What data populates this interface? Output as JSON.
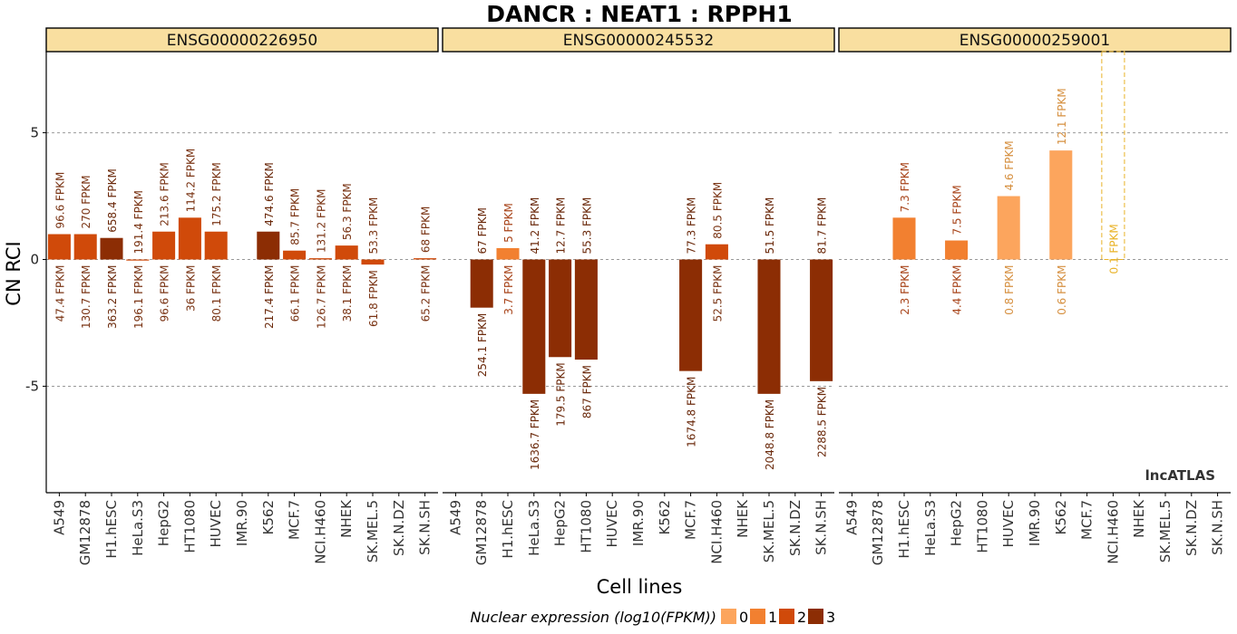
{
  "chart_data": {
    "type": "bar",
    "title": "DANCR : NEAT1 : RPPH1",
    "xlabel": "Cell lines",
    "ylabel": "CN RCI",
    "watermark": "lncATLAS",
    "ylim": [
      -9.2,
      8.2
    ],
    "yticks": [
      -5,
      0,
      5
    ],
    "ytick_labels": [
      "-5",
      "0",
      "5"
    ],
    "grid": "horizontal-dashed",
    "categories": [
      "A549",
      "GM12878",
      "H1.hESC",
      "HeLa.S3",
      "HepG2",
      "HT1080",
      "HUVEC",
      "IMR.90",
      "K562",
      "MCF.7",
      "NCI.H460",
      "NHEK",
      "SK.MEL.5",
      "SK.N.DZ",
      "SK.N.SH"
    ],
    "legend": {
      "title": "Nuclear expression (log10(FPKM))",
      "position": "bottom",
      "levels": [
        {
          "label": "0",
          "color": "#fca55d"
        },
        {
          "label": "1",
          "color": "#f28030"
        },
        {
          "label": "2",
          "color": "#d04a0a"
        },
        {
          "label": "3",
          "color": "#8c2d04"
        }
      ]
    },
    "panels": [
      {
        "name": "ENSG00000226950",
        "bars": [
          {
            "category": "A549",
            "value": 1.0,
            "level": 2,
            "top_label": "96.6 FPKM",
            "bottom_label": "47.4 FPKM"
          },
          {
            "category": "GM12878",
            "value": 1.0,
            "level": 2,
            "top_label": "270 FPKM",
            "bottom_label": "130.7 FPKM"
          },
          {
            "category": "H1.hESC",
            "value": 0.85,
            "level": 3,
            "top_label": "658.4 FPKM",
            "bottom_label": "363.2 FPKM"
          },
          {
            "category": "HeLa.S3",
            "value": 0.0,
            "level": 2,
            "top_label": "191.4 FPKM",
            "bottom_label": "196.1 FPKM"
          },
          {
            "category": "HepG2",
            "value": 1.1,
            "level": 2,
            "top_label": "213.6 FPKM",
            "bottom_label": "96.6 FPKM"
          },
          {
            "category": "HT1080",
            "value": 1.65,
            "level": 2,
            "top_label": "114.2 FPKM",
            "bottom_label": "36 FPKM"
          },
          {
            "category": "HUVEC",
            "value": 1.1,
            "level": 2,
            "top_label": "175.2 FPKM",
            "bottom_label": "80.1 FPKM"
          },
          {
            "category": "K562",
            "value": 1.1,
            "level": 3,
            "top_label": "474.6 FPKM",
            "bottom_label": "217.4 FPKM"
          },
          {
            "category": "MCF.7",
            "value": 0.35,
            "level": 2,
            "top_label": "85.7 FPKM",
            "bottom_label": "66.1 FPKM"
          },
          {
            "category": "NCI.H460",
            "value": 0.05,
            "level": 2,
            "top_label": "131.2 FPKM",
            "bottom_label": "126.7 FPKM"
          },
          {
            "category": "NHEK",
            "value": 0.55,
            "level": 2,
            "top_label": "56.3 FPKM",
            "bottom_label": "38.1 FPKM"
          },
          {
            "category": "SK.MEL.5",
            "value": -0.2,
            "level": 2,
            "top_label": "53.3 FPKM",
            "bottom_label": "61.8 FPKM"
          },
          {
            "category": "SK.N.SH",
            "value": 0.05,
            "level": 2,
            "top_label": "68 FPKM",
            "bottom_label": "65.2 FPKM"
          }
        ]
      },
      {
        "name": "ENSG00000245532",
        "bars": [
          {
            "category": "GM12878",
            "value": -1.9,
            "level": 3,
            "top_label": "67 FPKM",
            "bottom_label": "254.1 FPKM"
          },
          {
            "category": "H1.hESC",
            "value": 0.45,
            "level": 1,
            "top_label": "5 FPKM",
            "bottom_label": "3.7 FPKM"
          },
          {
            "category": "HeLa.S3",
            "value": -5.3,
            "level": 3,
            "top_label": "41.2 FPKM",
            "bottom_label": "1636.7 FPKM"
          },
          {
            "category": "HepG2",
            "value": -3.85,
            "level": 3,
            "top_label": "12.7 FPKM",
            "bottom_label": "179.5 FPKM"
          },
          {
            "category": "HT1080",
            "value": -3.95,
            "level": 3,
            "top_label": "55.3 FPKM",
            "bottom_label": "867 FPKM"
          },
          {
            "category": "MCF.7",
            "value": -4.4,
            "level": 3,
            "top_label": "77.3 FPKM",
            "bottom_label": "1674.8 FPKM"
          },
          {
            "category": "NCI.H460",
            "value": 0.6,
            "level": 2,
            "top_label": "80.5 FPKM",
            "bottom_label": "52.5 FPKM"
          },
          {
            "category": "SK.MEL.5",
            "value": -5.3,
            "level": 3,
            "top_label": "51.5 FPKM",
            "bottom_label": "2048.8 FPKM"
          },
          {
            "category": "SK.N.SH",
            "value": -4.8,
            "level": 3,
            "top_label": "81.7 FPKM",
            "bottom_label": "2288.5 FPKM"
          }
        ]
      },
      {
        "name": "ENSG00000259001",
        "bars": [
          {
            "category": "H1.hESC",
            "value": 1.65,
            "level": 1,
            "top_label": "7.3 FPKM",
            "bottom_label": "2.3 FPKM"
          },
          {
            "category": "HepG2",
            "value": 0.75,
            "level": 1,
            "top_label": "7.5 FPKM",
            "bottom_label": "4.4 FPKM"
          },
          {
            "category": "HUVEC",
            "value": 2.5,
            "level": 0,
            "top_label": "4.6 FPKM",
            "bottom_label": "0.8 FPKM"
          },
          {
            "category": "K562",
            "value": 4.3,
            "level": 0,
            "top_label": "12.1 FPKM",
            "bottom_label": "0.6 FPKM"
          },
          {
            "category": "NCI.H460",
            "value": 8.2,
            "level": 0,
            "dashed": true,
            "inner_label": "0.1 FPKM"
          }
        ]
      }
    ]
  }
}
